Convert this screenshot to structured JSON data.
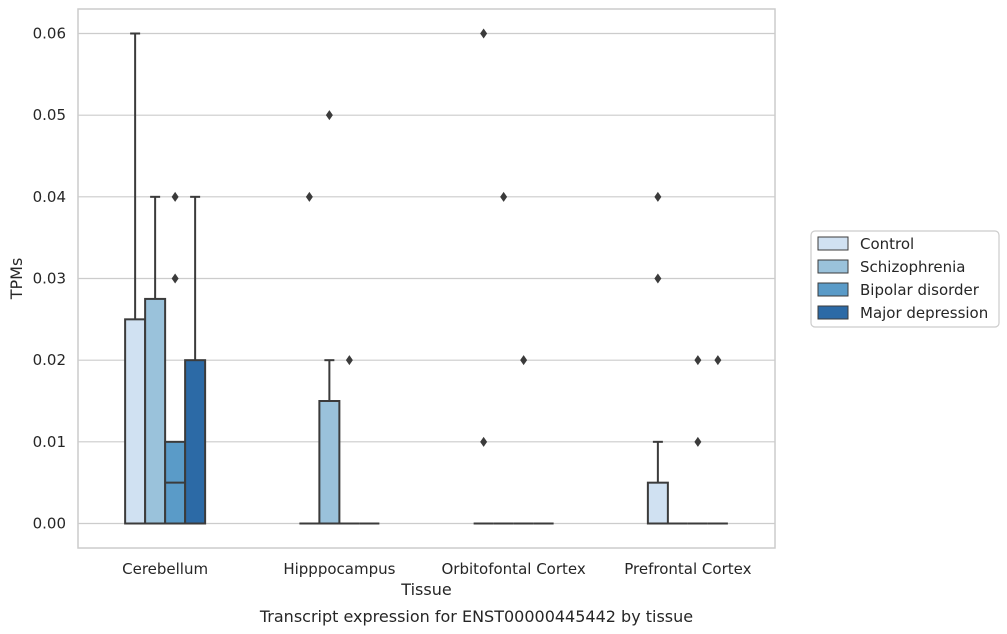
{
  "chart_data": {
    "type": "box",
    "xlabel": "Tissue",
    "ylabel": "TPMs",
    "caption": "Transcript expression for ENST00000445442 by tissue",
    "ylim": [
      -0.003,
      0.063
    ],
    "yticks": [
      "0.00",
      "0.01",
      "0.02",
      "0.03",
      "0.04",
      "0.05",
      "0.06"
    ],
    "grid": "horizontal",
    "legend_position": "right",
    "categories": [
      "Cerebellum",
      "Hipppocampus",
      "Orbitofontal Cortex",
      "Prefrontal Cortex"
    ],
    "series": [
      {
        "name": "Control",
        "color": "#d0e1f2",
        "boxes": [
          {
            "q1": 0.0,
            "median": 0.0,
            "q3": 0.025,
            "whisker_low": 0.0,
            "whisker_high": 0.06,
            "outliers": []
          },
          {
            "q1": 0.0,
            "median": 0.0,
            "q3": 0.0,
            "whisker_low": 0.0,
            "whisker_high": 0.0,
            "outliers": [
              0.04
            ]
          },
          {
            "q1": 0.0,
            "median": 0.0,
            "q3": 0.0,
            "whisker_low": 0.0,
            "whisker_high": 0.0,
            "outliers": [
              0.06,
              0.01
            ]
          },
          {
            "q1": 0.0,
            "median": 0.0,
            "q3": 0.005,
            "whisker_low": 0.0,
            "whisker_high": 0.01,
            "outliers": [
              0.04,
              0.03
            ]
          }
        ]
      },
      {
        "name": "Schizophrenia",
        "color": "#9ac2db",
        "boxes": [
          {
            "q1": 0.0,
            "median": 0.0,
            "q3": 0.0275,
            "whisker_low": 0.0,
            "whisker_high": 0.04,
            "outliers": []
          },
          {
            "q1": 0.0,
            "median": 0.0,
            "q3": 0.015,
            "whisker_low": 0.0,
            "whisker_high": 0.02,
            "outliers": [
              0.05
            ]
          },
          {
            "q1": 0.0,
            "median": 0.0,
            "q3": 0.0,
            "whisker_low": 0.0,
            "whisker_high": 0.0,
            "outliers": [
              0.04
            ]
          },
          {
            "q1": 0.0,
            "median": 0.0,
            "q3": 0.0,
            "whisker_low": 0.0,
            "whisker_high": 0.0,
            "outliers": []
          }
        ]
      },
      {
        "name": "Bipolar disorder",
        "color": "#5a9bc8",
        "boxes": [
          {
            "q1": 0.0,
            "median": 0.005,
            "q3": 0.01,
            "whisker_low": 0.0,
            "whisker_high": 0.01,
            "outliers": [
              0.04,
              0.03
            ]
          },
          {
            "q1": 0.0,
            "median": 0.0,
            "q3": 0.0,
            "whisker_low": 0.0,
            "whisker_high": 0.0,
            "outliers": [
              0.02
            ]
          },
          {
            "q1": 0.0,
            "median": 0.0,
            "q3": 0.0,
            "whisker_low": 0.0,
            "whisker_high": 0.0,
            "outliers": [
              0.02
            ]
          },
          {
            "q1": 0.0,
            "median": 0.0,
            "q3": 0.0,
            "whisker_low": 0.0,
            "whisker_high": 0.0,
            "outliers": [
              0.02,
              0.01
            ]
          }
        ]
      },
      {
        "name": "Major depression",
        "color": "#2c6aa6",
        "boxes": [
          {
            "q1": 0.0,
            "median": 0.0,
            "q3": 0.02,
            "whisker_low": 0.0,
            "whisker_high": 0.04,
            "outliers": []
          },
          {
            "q1": 0.0,
            "median": 0.0,
            "q3": 0.0,
            "whisker_low": 0.0,
            "whisker_high": 0.0,
            "outliers": []
          },
          {
            "q1": 0.0,
            "median": 0.0,
            "q3": 0.0,
            "whisker_low": 0.0,
            "whisker_high": 0.0,
            "outliers": []
          },
          {
            "q1": 0.0,
            "median": 0.0,
            "q3": 0.0,
            "whisker_low": 0.0,
            "whisker_high": 0.0,
            "outliers": [
              0.02
            ]
          }
        ]
      }
    ]
  }
}
